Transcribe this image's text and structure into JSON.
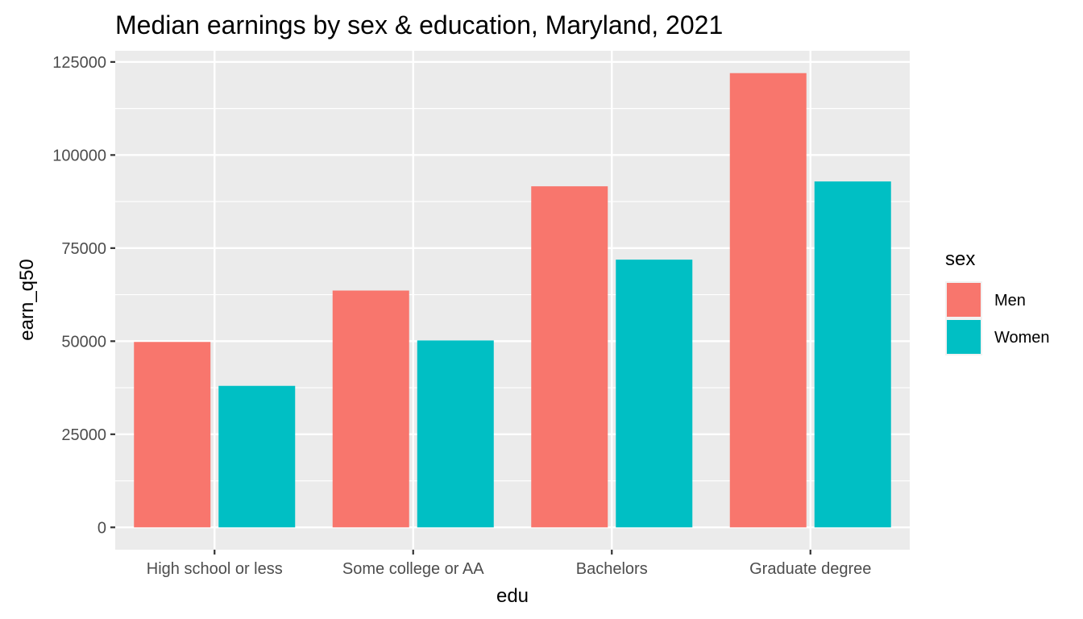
{
  "chart_data": {
    "type": "bar",
    "title": "Median earnings by sex & education, Maryland, 2021",
    "xlabel": "edu",
    "ylabel": "earn_q50",
    "categories": [
      "High school or less",
      "Some college or AA",
      "Bachelors",
      "Graduate degree"
    ],
    "series": [
      {
        "name": "Men",
        "color": "#F8766D",
        "values": [
          49800,
          63600,
          91600,
          122000
        ]
      },
      {
        "name": "Women",
        "color": "#00BFC4",
        "values": [
          38000,
          50200,
          71900,
          92900
        ]
      }
    ],
    "yticks": [
      0,
      25000,
      50000,
      75000,
      100000,
      125000
    ],
    "ytick_labels": [
      "0",
      "25000",
      "50000",
      "75000",
      "100000",
      "125000"
    ],
    "ylim": [
      -6000,
      128000
    ],
    "grid": true,
    "legend": {
      "title": "sex",
      "position": "right"
    },
    "colors": {
      "panel": "#EBEBEB",
      "grid": "#FFFFFF",
      "tick_text": "#4D4D4D"
    }
  }
}
